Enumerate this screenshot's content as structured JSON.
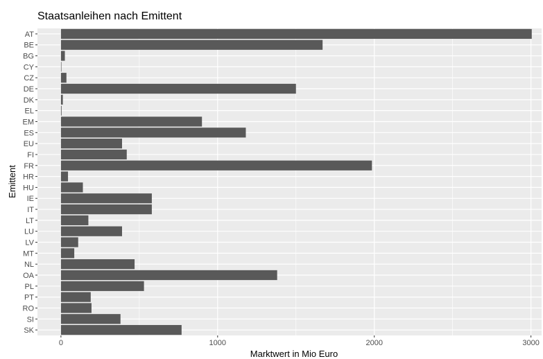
{
  "chart_data": {
    "type": "bar",
    "orientation": "horizontal",
    "title": "Staatsanleihen nach Emittent",
    "xlabel": "Marktwert in Mio Euro",
    "ylabel": "Emittent",
    "xlim": [
      -150,
      3000
    ],
    "xticks": [
      "0",
      "1000",
      "2000",
      "3000"
    ],
    "grid": true,
    "legend": "none",
    "background_color": "#ebebeb",
    "bar_color": "#595959",
    "categories": [
      "AT",
      "BE",
      "BG",
      "CY",
      "CZ",
      "DE",
      "DK",
      "EL",
      "EM",
      "ES",
      "EU",
      "FI",
      "FR",
      "HR",
      "HU",
      "IE",
      "IT",
      "LT",
      "LU",
      "LV",
      "MT",
      "NL",
      "OA",
      "PL",
      "PT",
      "RO",
      "SI",
      "SK"
    ],
    "values": [
      3005,
      1670,
      25,
      3,
      35,
      1500,
      12,
      4,
      900,
      1180,
      390,
      420,
      1985,
      45,
      140,
      580,
      580,
      175,
      390,
      110,
      85,
      470,
      1380,
      530,
      190,
      195,
      380,
      770
    ]
  }
}
